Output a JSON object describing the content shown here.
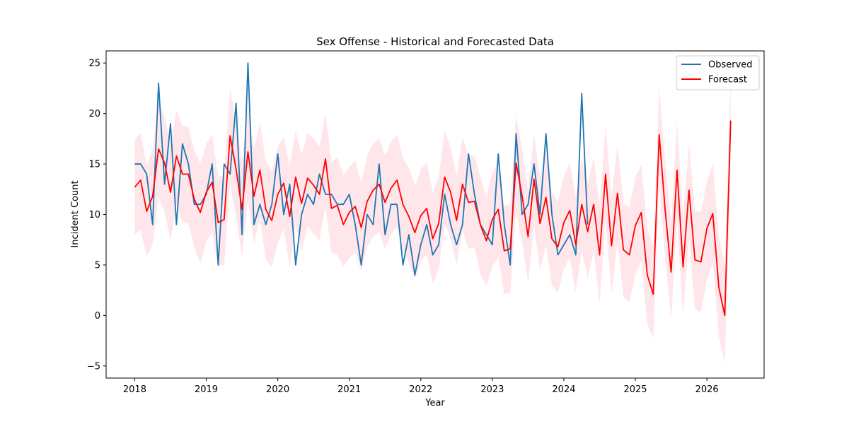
{
  "chart_data": {
    "type": "line",
    "title": "Sex Offense - Historical and Forecasted Data",
    "xlabel": "Year",
    "ylabel": "Incident Count",
    "xlim": [
      2017.6,
      2026.8
    ],
    "ylim": [
      -6.2,
      26.2
    ],
    "x_ticks": [
      2018,
      2019,
      2020,
      2021,
      2022,
      2023,
      2024,
      2025,
      2026
    ],
    "x_tick_labels": [
      "2018",
      "2019",
      "2020",
      "2021",
      "2022",
      "2023",
      "2024",
      "2025",
      "2026"
    ],
    "y_ticks": [
      -5,
      0,
      5,
      10,
      15,
      20,
      25
    ],
    "y_tick_labels": [
      "−5",
      "0",
      "5",
      "10",
      "15",
      "20",
      "25"
    ],
    "grid": false,
    "legend_position": "top-right",
    "legend": [
      {
        "label": "Observed",
        "color": "#1f77b4"
      },
      {
        "label": "Forecast",
        "color": "#ff0000"
      }
    ],
    "series": [
      {
        "name": "Observed",
        "color": "#1f77b4",
        "x": [
          2018.0,
          2018.083,
          2018.167,
          2018.25,
          2018.333,
          2018.417,
          2018.5,
          2018.583,
          2018.667,
          2018.75,
          2018.833,
          2018.917,
          2019.0,
          2019.083,
          2019.167,
          2019.25,
          2019.333,
          2019.417,
          2019.5,
          2019.583,
          2019.667,
          2019.75,
          2019.833,
          2019.917,
          2020.0,
          2020.083,
          2020.167,
          2020.25,
          2020.333,
          2020.417,
          2020.5,
          2020.583,
          2020.667,
          2020.75,
          2020.833,
          2020.917,
          2021.0,
          2021.083,
          2021.167,
          2021.25,
          2021.333,
          2021.417,
          2021.5,
          2021.583,
          2021.667,
          2021.75,
          2021.833,
          2021.917,
          2022.0,
          2022.083,
          2022.167,
          2022.25,
          2022.333,
          2022.417,
          2022.5,
          2022.583,
          2022.667,
          2022.75,
          2022.833,
          2022.917,
          2023.0,
          2023.083,
          2023.167,
          2023.25,
          2023.333,
          2023.417,
          2023.5,
          2023.583,
          2023.667,
          2023.75,
          2023.833,
          2023.917,
          2024.0,
          2024.083,
          2024.167,
          2024.25,
          2024.333
        ],
        "values": [
          15,
          15,
          14,
          9,
          23,
          13,
          19,
          9,
          17,
          15,
          11,
          11,
          12,
          15,
          5,
          15,
          14,
          21,
          8,
          25,
          9,
          11,
          9,
          11,
          16,
          10,
          13,
          5,
          10,
          12,
          11,
          14,
          12,
          12,
          11,
          11,
          12,
          9,
          5,
          10,
          9,
          15,
          8,
          11,
          11,
          5,
          8,
          4,
          7,
          9,
          6,
          7,
          12,
          9,
          7,
          9,
          16,
          12,
          9,
          8,
          7,
          16,
          9,
          5,
          18,
          10,
          11,
          15,
          10,
          18,
          10,
          6,
          7,
          8,
          6,
          22,
          9
        ]
      },
      {
        "name": "Forecast",
        "color": "#ff0000",
        "x": [
          2018.0,
          2018.083,
          2018.167,
          2018.25,
          2018.333,
          2018.417,
          2018.5,
          2018.583,
          2018.667,
          2018.75,
          2018.833,
          2018.917,
          2019.0,
          2019.083,
          2019.167,
          2019.25,
          2019.333,
          2019.417,
          2019.5,
          2019.583,
          2019.667,
          2019.75,
          2019.833,
          2019.917,
          2020.0,
          2020.083,
          2020.167,
          2020.25,
          2020.333,
          2020.417,
          2020.5,
          2020.583,
          2020.667,
          2020.75,
          2020.833,
          2020.917,
          2021.0,
          2021.083,
          2021.167,
          2021.25,
          2021.333,
          2021.417,
          2021.5,
          2021.583,
          2021.667,
          2021.75,
          2021.833,
          2021.917,
          2022.0,
          2022.083,
          2022.167,
          2022.25,
          2022.333,
          2022.417,
          2022.5,
          2022.583,
          2022.667,
          2022.75,
          2022.833,
          2022.917,
          2023.0,
          2023.083,
          2023.167,
          2023.25,
          2023.333,
          2023.417,
          2023.5,
          2023.583,
          2023.667,
          2023.75,
          2023.833,
          2023.917,
          2024.0,
          2024.083,
          2024.167,
          2024.25,
          2024.333,
          2024.417,
          2024.5,
          2024.583,
          2024.667,
          2024.75,
          2024.833,
          2024.917,
          2025.0,
          2025.083,
          2025.167,
          2025.25,
          2025.333,
          2025.417,
          2025.5,
          2025.583,
          2025.667,
          2025.75,
          2025.833,
          2025.917,
          2026.0,
          2026.083,
          2026.167,
          2026.25,
          2026.333
        ],
        "values": [
          12.7,
          13.4,
          10.3,
          11.8,
          16.5,
          15.1,
          12.2,
          15.8,
          14.0,
          14.0,
          11.5,
          10.2,
          12.2,
          13.2,
          9.2,
          9.5,
          17.8,
          14.5,
          10.5,
          16.2,
          11.8,
          14.4,
          10.5,
          9.4,
          12.0,
          13.1,
          9.8,
          13.7,
          11.1,
          13.6,
          12.9,
          12.0,
          15.5,
          10.6,
          10.9,
          9.0,
          10.2,
          10.8,
          8.7,
          11.3,
          12.4,
          13.0,
          11.2,
          12.6,
          13.4,
          11.0,
          9.8,
          8.2,
          9.9,
          10.6,
          7.6,
          9.1,
          13.7,
          12.2,
          9.4,
          13.0,
          11.2,
          11.3,
          9.0,
          7.4,
          9.5,
          10.5,
          6.4,
          6.6,
          15.1,
          11.8,
          7.8,
          13.5,
          9.1,
          11.7,
          7.6,
          6.8,
          9.2,
          10.4,
          7.0,
          11.0,
          8.3,
          11.0,
          6.0,
          14.0,
          6.9,
          12.1,
          6.5,
          6.0,
          8.9,
          10.2,
          4.0,
          2.1,
          17.9,
          10.4,
          4.3,
          14.4,
          4.8,
          12.4,
          5.5,
          5.3,
          8.6,
          10.1,
          2.8,
          0.0,
          19.3
        ],
        "lower": [
          8.0,
          8.5,
          5.8,
          7.0,
          11.8,
          10.3,
          7.4,
          11.0,
          9.2,
          9.1,
          6.7,
          5.2,
          7.3,
          8.2,
          4.8,
          5.0,
          13.0,
          9.8,
          5.8,
          11.5,
          7.1,
          9.7,
          5.5,
          4.8,
          7.2,
          8.6,
          4.8,
          9.1,
          6.3,
          8.9,
          8.1,
          7.4,
          10.8,
          6.2,
          6.0,
          4.9,
          5.7,
          6.2,
          4.4,
          6.8,
          7.8,
          8.3,
          6.6,
          8.0,
          8.8,
          6.4,
          5.3,
          3.6,
          5.4,
          6.0,
          3.1,
          4.5,
          9.1,
          7.6,
          5.0,
          8.4,
          6.6,
          6.7,
          4.1,
          2.9,
          4.8,
          5.7,
          2.1,
          2.2,
          10.3,
          7.2,
          3.2,
          9.0,
          4.5,
          7.0,
          3.0,
          2.2,
          4.6,
          5.7,
          2.3,
          6.3,
          3.7,
          6.4,
          1.2,
          9.3,
          2.1,
          7.3,
          1.8,
          1.3,
          4.1,
          5.4,
          -0.8,
          -2.3,
          13.0,
          5.6,
          -0.4,
          9.6,
          -0.1,
          7.6,
          0.6,
          0.3,
          3.6,
          5.2,
          -2.0,
          -4.8,
          14.5
        ],
        "upper": [
          17.4,
          18.1,
          14.8,
          16.5,
          21.2,
          19.8,
          17.0,
          20.3,
          18.8,
          18.7,
          16.3,
          15.0,
          17.0,
          17.9,
          13.7,
          14.0,
          22.5,
          19.2,
          15.2,
          20.9,
          16.5,
          19.1,
          15.3,
          14.3,
          16.7,
          17.7,
          14.8,
          18.3,
          15.9,
          18.1,
          17.5,
          16.7,
          20.1,
          15.2,
          15.7,
          13.9,
          14.7,
          15.4,
          13.1,
          15.9,
          17.0,
          17.6,
          15.8,
          17.2,
          17.9,
          15.6,
          14.6,
          12.8,
          14.4,
          15.2,
          12.1,
          13.7,
          18.3,
          16.7,
          13.8,
          17.6,
          15.9,
          15.8,
          13.7,
          11.7,
          14.2,
          15.2,
          10.8,
          11.0,
          19.8,
          16.4,
          12.3,
          18.0,
          13.6,
          16.4,
          12.2,
          11.3,
          13.8,
          15.1,
          11.7,
          15.7,
          13.0,
          15.7,
          10.8,
          18.7,
          11.7,
          16.9,
          11.1,
          10.7,
          13.7,
          14.9,
          8.7,
          6.7,
          22.7,
          15.2,
          9.1,
          19.2,
          9.7,
          17.1,
          10.4,
          10.2,
          13.3,
          15.0,
          7.8,
          4.8,
          24.0
        ]
      }
    ]
  }
}
